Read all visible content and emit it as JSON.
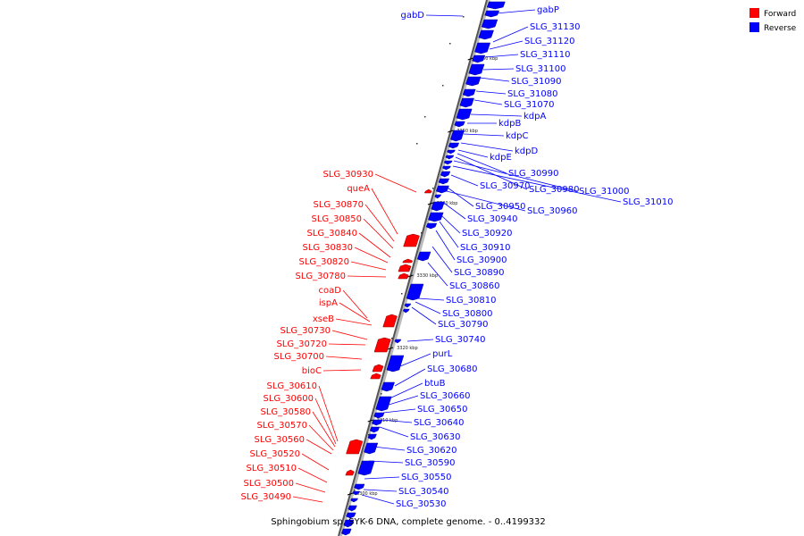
{
  "caption": "Sphingobium sp. SYK-6 DNA, complete genome. - 0..4199332",
  "legend": {
    "forward": {
      "label": "Forward",
      "color": "#ff0000"
    },
    "reverse": {
      "label": "Reverse",
      "color": "#0000ff"
    }
  },
  "ticks": [
    "3360 kbp",
    "3350 kbp",
    "3340 kbp",
    "3330 kbp",
    "3320 kbp",
    "3310 kbp",
    "3300 kbp"
  ],
  "forward_labels": [
    "SLG_30930",
    "queA",
    "SLG_30870",
    "SLG_30850",
    "SLG_30840",
    "SLG_30830",
    "SLG_30820",
    "SLG_30780",
    "coaD",
    "ispA",
    "xseB",
    "SLG_30730",
    "SLG_30720",
    "SLG_30700",
    "bioC",
    "SLG_30610",
    "SLG_30600",
    "SLG_30580",
    "SLG_30570",
    "SLG_30560",
    "SLG_30520",
    "SLG_30510",
    "SLG_30500",
    "SLG_30490"
  ],
  "reverse_labels": [
    "gabD",
    "gabP",
    "SLG_31130",
    "SLG_31120",
    "SLG_31110",
    "SLG_31100",
    "SLG_31090",
    "SLG_31080",
    "SLG_31070",
    "kdpA",
    "kdpB",
    "kdpC",
    "kdpD",
    "kdpE",
    "SLG_30990",
    "SLG_30980",
    "SLG_31000",
    "SLG_31010",
    "SLG_30970",
    "SLG_30950",
    "SLG_30960",
    "SLG_30940",
    "SLG_30920",
    "SLG_30910",
    "SLG_30900",
    "SLG_30890",
    "SLG_30860",
    "SLG_30810",
    "SLG_30800",
    "SLG_30790",
    "SLG_30740",
    "purL",
    "SLG_30680",
    "btuB",
    "SLG_30660",
    "SLG_30650",
    "SLG_30640",
    "SLG_30630",
    "SLG_30620",
    "SLG_30590",
    "SLG_30550",
    "SLG_30540",
    "SLG_30530"
  ]
}
